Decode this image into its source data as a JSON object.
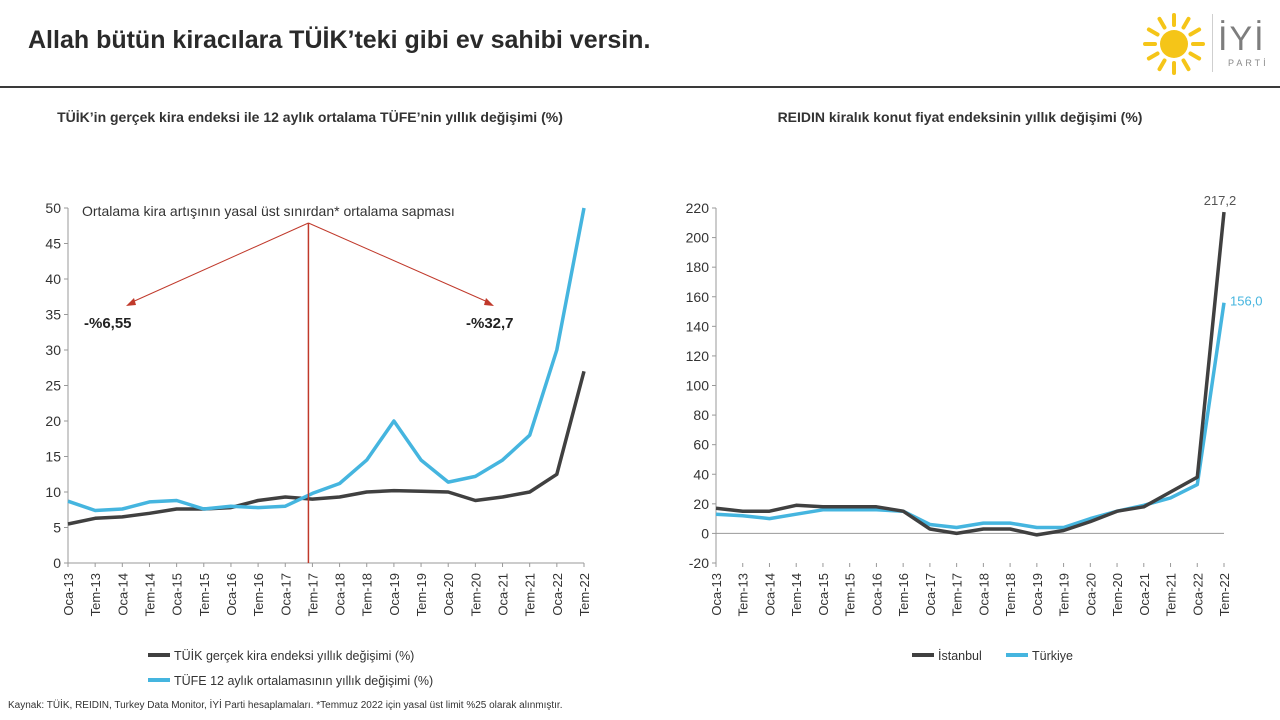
{
  "header": {
    "title": "Allah bütün kiracılara TÜİK’teki gibi ev sahibi versin.",
    "logo_text": "İYİ",
    "logo_sub": "PARTİ"
  },
  "footer": {
    "source": "Kaynak: TÜİK, REIDIN, Turkey Data Monitor, İYİ Parti hesaplamaları. *Temmuz 2022 için yasal üst limit %25 olarak alınmıştır."
  },
  "colors": {
    "dark_series": "#404040",
    "blue_series": "#45b5df",
    "annotation": "#c0392b",
    "accent_yellow": "#f5c518"
  },
  "chart_data": [
    {
      "type": "line",
      "title": "TÜİK’in gerçek kira endeksi ile 12 aylık ortalama TÜFE’nin yıllık değişimi (%)",
      "x_ticks": [
        "Oca-13",
        "Tem-13",
        "Oca-14",
        "Tem-14",
        "Oca-15",
        "Tem-15",
        "Oca-16",
        "Tem-16",
        "Oca-17",
        "Tem-17",
        "Oca-18",
        "Tem-18",
        "Oca-19",
        "Tem-19",
        "Oca-20",
        "Tem-20",
        "Oca-21",
        "Tem-21",
        "Oca-22",
        "Tem-22"
      ],
      "ylim": [
        0,
        50
      ],
      "y_ticks": [
        0,
        5,
        10,
        15,
        20,
        25,
        30,
        35,
        40,
        45,
        50
      ],
      "legend_position": "bottom",
      "series": [
        {
          "name": "TÜİK gerçek kira endeksi yıllık değişimi (%)",
          "values": [
            5.5,
            6.3,
            6.5,
            7.0,
            7.6,
            7.6,
            7.8,
            8.8,
            9.3,
            9.0,
            9.3,
            10.0,
            10.2,
            10.1,
            10.0,
            8.8,
            9.3,
            10.0,
            12.5,
            27.0
          ]
        },
        {
          "name": "TÜFE 12 aylık ortalamasının yıllık değişimi (%)",
          "values": [
            8.7,
            7.4,
            7.6,
            8.6,
            8.8,
            7.6,
            8.0,
            7.8,
            8.0,
            9.8,
            11.2,
            14.5,
            20.0,
            14.5,
            11.4,
            12.2,
            14.5,
            18.0,
            30.0,
            50.0
          ]
        }
      ],
      "annotation": {
        "text": "Ortalama kira artışının yasal üst sınırdan* ortalama sapması",
        "vline_x": "Tem-17",
        "left_label": "-%6,55",
        "right_label": "-%32,7"
      }
    },
    {
      "type": "line",
      "title": "REIDIN kiralık konut fiyat endeksinin yıllık değişimi (%)",
      "x_ticks": [
        "Oca-13",
        "Tem-13",
        "Oca-14",
        "Tem-14",
        "Oca-15",
        "Tem-15",
        "Oca-16",
        "Tem-16",
        "Oca-17",
        "Tem-17",
        "Oca-18",
        "Tem-18",
        "Oca-19",
        "Tem-19",
        "Oca-20",
        "Tem-20",
        "Oca-21",
        "Tem-21",
        "Oca-22",
        "Tem-22"
      ],
      "ylim": [
        -20,
        220
      ],
      "y_ticks": [
        -20,
        0,
        20,
        40,
        60,
        80,
        100,
        120,
        140,
        160,
        180,
        200,
        220
      ],
      "legend_position": "bottom",
      "series": [
        {
          "name": "İstanbul",
          "values": [
            17,
            15,
            15,
            19,
            18,
            18,
            18,
            15,
            3,
            0,
            3,
            3,
            -1,
            2,
            8,
            15,
            18,
            28,
            38,
            217.2
          ],
          "end_label": "217,2"
        },
        {
          "name": "Türkiye",
          "values": [
            13,
            12,
            10,
            13,
            16,
            16,
            16,
            15,
            6,
            4,
            7,
            7,
            4,
            4,
            10,
            15,
            19,
            24,
            33,
            156.0
          ],
          "end_label": "156,0"
        }
      ]
    }
  ]
}
